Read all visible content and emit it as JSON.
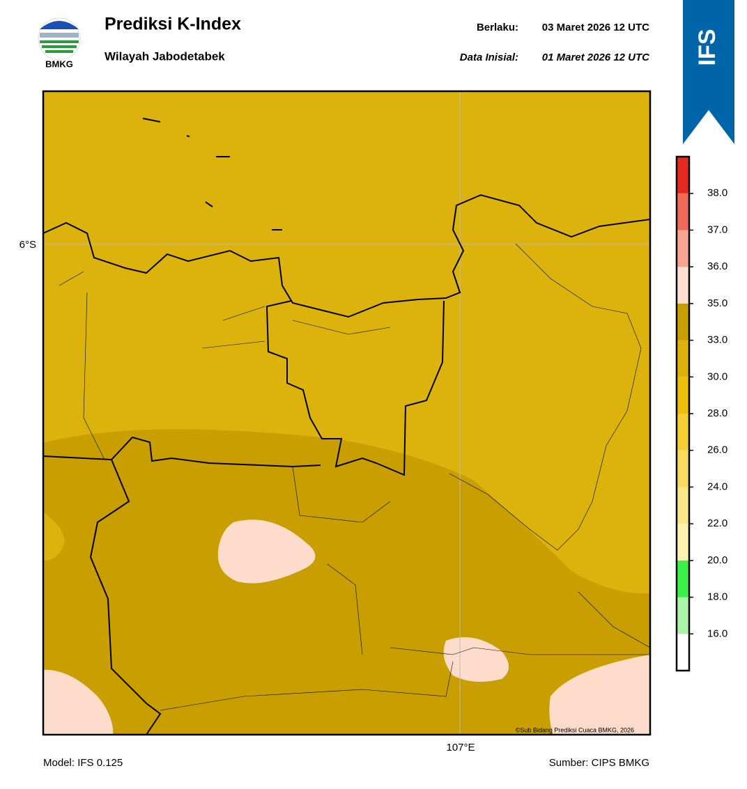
{
  "header": {
    "title": "Prediksi K-Index",
    "subtitle": "Wilayah Jabodetabek",
    "valid_label": "Berlaku:",
    "valid_time": "03 Maret 2026 12 UTC",
    "init_label": "Data Inisial:",
    "init_time": "01 Maret 2026 12 UTC",
    "logo_text": "BMKG",
    "badge": "IFS"
  },
  "map": {
    "lat_label": "6°S",
    "lon_label": "107°E",
    "credit": "©Sub Bidang Prediksi Cuaca BMKG, 2026"
  },
  "colorbar": {
    "ticks": [
      {
        "value": 16,
        "label": "16.0"
      },
      {
        "value": 18,
        "label": "18.0"
      },
      {
        "value": 20,
        "label": "20.0"
      },
      {
        "value": 22,
        "label": "22.0"
      },
      {
        "value": 24,
        "label": "24.0"
      },
      {
        "value": 26,
        "label": "26.0"
      },
      {
        "value": 28,
        "label": "28.0"
      },
      {
        "value": 30,
        "label": "30.0"
      },
      {
        "value": 33,
        "label": "33.0"
      },
      {
        "value": 35,
        "label": "35.0"
      },
      {
        "value": 36,
        "label": "36.0"
      },
      {
        "value": 37,
        "label": "37.0"
      },
      {
        "value": 38,
        "label": "38.0"
      }
    ],
    "colors": [
      "#ffffff",
      "#a8f5a8",
      "#3cf04a",
      "#fdf2b0",
      "#fbe587",
      "#f8da5e",
      "#f5cd35",
      "#eebf0a",
      "#dcb20c",
      "#c99e00",
      "#fde0d2",
      "#f8a590",
      "#f06a58",
      "#e42a20"
    ]
  },
  "footer": {
    "model": "Model: IFS 0.125",
    "source": "Sumber: CIPS BMKG"
  }
}
